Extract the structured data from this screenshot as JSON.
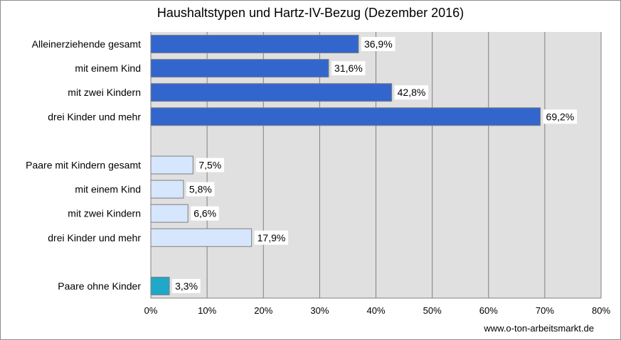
{
  "chart_data": {
    "type": "bar",
    "orientation": "horizontal",
    "title": "Haushaltstypen und Hartz-IV-Bezug (Dezember 2016)",
    "xlim": [
      0,
      80
    ],
    "x_ticks": [
      0,
      10,
      20,
      30,
      40,
      50,
      60,
      70,
      80
    ],
    "x_tick_labels": [
      "0%",
      "10%",
      "20%",
      "30%",
      "40%",
      "50%",
      "60%",
      "70%",
      "80%"
    ],
    "grid": true,
    "categories": [
      "Alleinerziehende gesamt",
      "mit einem Kind",
      "mit zwei Kindern",
      "drei Kinder und mehr",
      "",
      "Paare mit Kindern gesamt",
      "mit einem Kind",
      "mit zwei Kindern",
      "drei Kinder und mehr",
      "",
      "Paare ohne Kinder"
    ],
    "values": [
      36.9,
      31.6,
      42.8,
      69.2,
      null,
      7.5,
      5.8,
      6.6,
      17.9,
      null,
      3.3
    ],
    "value_labels": [
      "36,9%",
      "31,6%",
      "42,8%",
      "69,2%",
      "",
      "7,5%",
      "5,8%",
      "6,6%",
      "17,9%",
      "",
      "3,3%"
    ],
    "bar_colors": [
      "#3366cc",
      "#3366cc",
      "#3366cc",
      "#3366cc",
      "",
      "#d6e6fc",
      "#d6e6fc",
      "#d6e6fc",
      "#d6e6fc",
      "",
      "#1fa8c8"
    ]
  },
  "footer": {
    "source": "www.o-ton-arbeitsmarkt.de"
  },
  "colors": {
    "plot_background": "#e0e0e0",
    "gridline": "#7f7f7f"
  }
}
